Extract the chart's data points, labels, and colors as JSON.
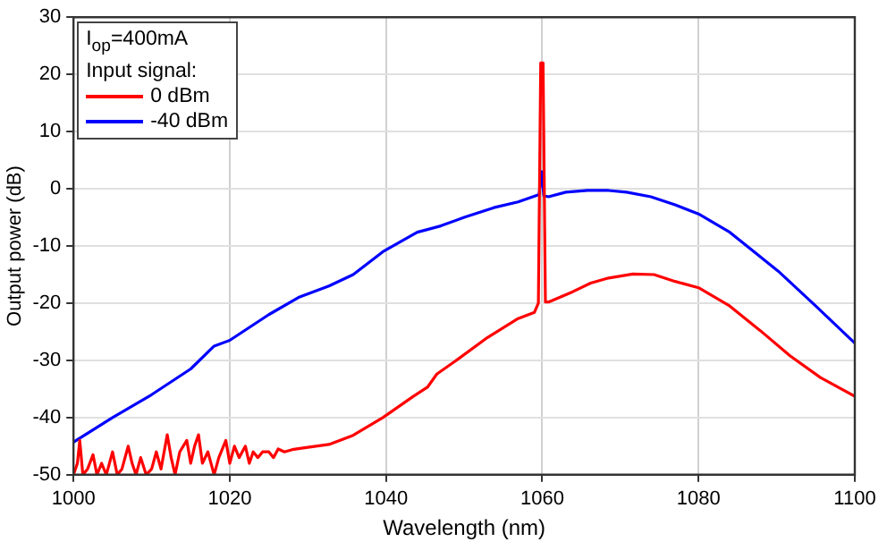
{
  "chart_data": {
    "type": "line",
    "xlabel": "Wavelength (nm)",
    "ylabel": "Output power (dB)",
    "legend_title": "Input signal:",
    "annotations": [
      "I$_{op}$=400mA"
    ],
    "xlim": [
      1000,
      1100
    ],
    "xticks": [
      1000,
      1020,
      1040,
      1060,
      1080,
      1100
    ],
    "ylim": [
      -50,
      30
    ],
    "yticks": [
      -50,
      -40,
      -30,
      -20,
      -10,
      0,
      10,
      20,
      30
    ],
    "grid": true,
    "legend": "top left",
    "marker": "none",
    "line_style": "solid",
    "series": [
      {
        "name": "0 dBm",
        "color": "#ff0000",
        "x": [
          1000,
          1000.5,
          1000.8,
          1001.2,
          1001.8,
          1002.5,
          1003,
          1003.6,
          1004.2,
          1005,
          1005.6,
          1006.2,
          1007,
          1007.5,
          1008,
          1008.6,
          1009.3,
          1010,
          1010.6,
          1011.2,
          1012,
          1012.5,
          1013,
          1013.6,
          1014.5,
          1015,
          1015.5,
          1016,
          1016.5,
          1017.2,
          1018,
          1018.6,
          1019.5,
          1020,
          1020.6,
          1021.2,
          1022,
          1022.5,
          1023,
          1023.6,
          1024.2,
          1025,
          1025.6,
          1026.2,
          1027,
          1028,
          1030,
          1032.7,
          1035.8,
          1039.6,
          1043.5,
          1045.3,
          1046.5,
          1049.2,
          1053,
          1056.9,
          1059,
          1059.5,
          1059.8,
          1060.1,
          1060.4,
          1060.8,
          1063.9,
          1066.2,
          1068.5,
          1071.6,
          1074.3,
          1077,
          1080,
          1084,
          1087.9,
          1091.7,
          1095.6,
          1100
        ],
        "values": [
          -50,
          -48,
          -44,
          -50,
          -49,
          -46.5,
          -50,
          -48,
          -50,
          -46,
          -50,
          -49,
          -45,
          -48,
          -50,
          -47,
          -50,
          -49,
          -46,
          -49,
          -43,
          -47,
          -50,
          -46,
          -44,
          -48,
          -45,
          -43,
          -48,
          -46,
          -50,
          -47,
          -44,
          -48,
          -45,
          -47,
          -45,
          -48,
          -46,
          -47,
          -46,
          -46,
          -47,
          -45.5,
          -46,
          -45.6,
          -45.2,
          -44.7,
          -43.1,
          -40,
          -36.3,
          -34.7,
          -32.4,
          -29.8,
          -26,
          -22.7,
          -21.6,
          -20,
          22,
          22,
          -19.8,
          -19.8,
          -18,
          -16.5,
          -15.6,
          -14.9,
          -15,
          -16.2,
          -17.3,
          -20.5,
          -24.8,
          -29.2,
          -33,
          -36.3
        ]
      },
      {
        "name": "-40 dBm",
        "color": "#0000ff",
        "x": [
          1000,
          1005,
          1010,
          1015,
          1018,
          1020,
          1025,
          1028.8,
          1032.7,
          1035.8,
          1039.6,
          1044,
          1047,
          1050,
          1053.8,
          1056.9,
          1059.2,
          1059.6,
          1059.9,
          1060.2,
          1060.8,
          1063,
          1065.8,
          1068.5,
          1070.8,
          1073.9,
          1077,
          1080,
          1084,
          1087,
          1090.2,
          1095,
          1100
        ],
        "values": [
          -44.3,
          -40,
          -36,
          -31.5,
          -27.5,
          -26.5,
          -22,
          -19,
          -17,
          -15,
          -11,
          -7.6,
          -6.5,
          -5,
          -3.3,
          -2.3,
          -1.2,
          -1,
          3,
          -1.2,
          -1.4,
          -0.6,
          -0.3,
          -0.3,
          -0.6,
          -1.4,
          -2.8,
          -4.4,
          -7.6,
          -10.9,
          -14.4,
          -20.5,
          -27
        ]
      }
    ]
  }
}
